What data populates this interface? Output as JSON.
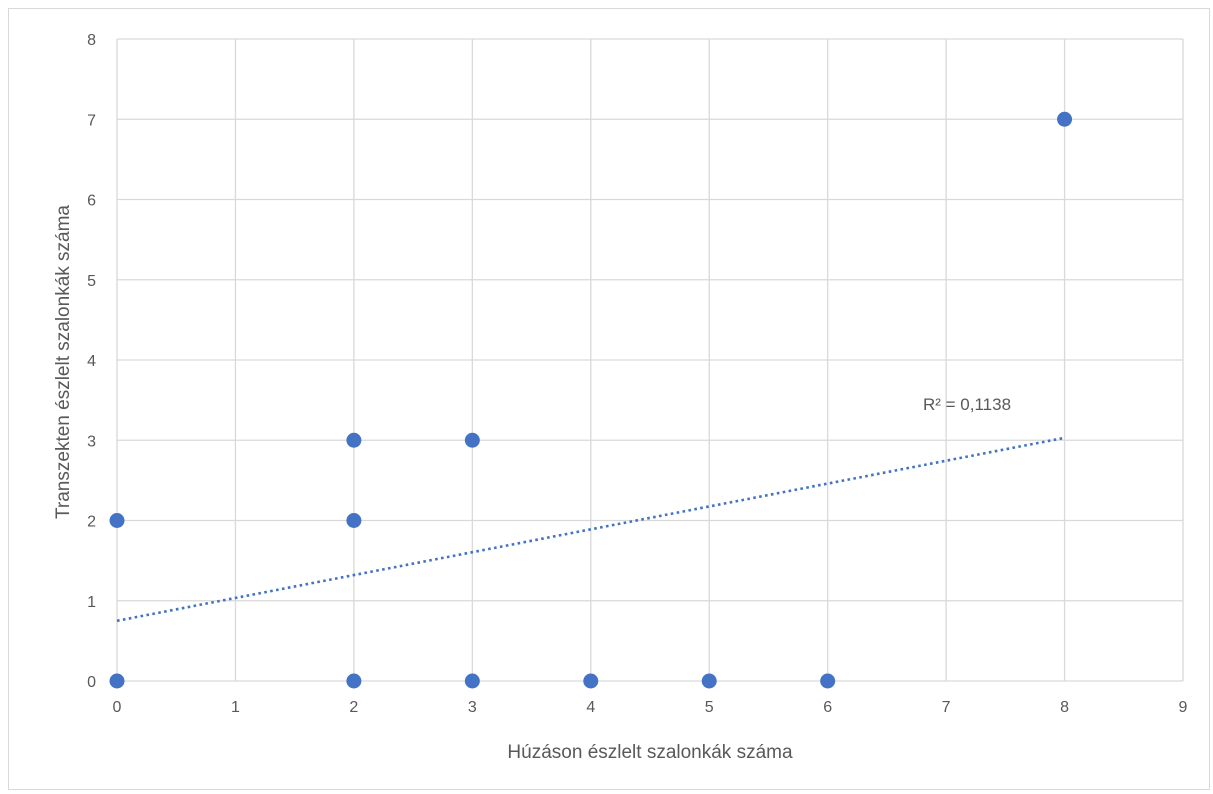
{
  "chart_data": {
    "type": "scatter",
    "title": "",
    "xlabel": "Húzáson észlelt szalonkák száma",
    "ylabel": "Transzekten észlelt szalonkák száma",
    "xlim": [
      0,
      9
    ],
    "ylim": [
      0,
      8
    ],
    "x_ticks": [
      0,
      1,
      2,
      3,
      4,
      5,
      6,
      7,
      8,
      9
    ],
    "y_ticks": [
      0,
      1,
      2,
      3,
      4,
      5,
      6,
      7,
      8
    ],
    "grid": true,
    "legend": "none",
    "series": [
      {
        "color": "#4472c4",
        "points": [
          {
            "x": 0,
            "y": 2
          },
          {
            "x": 0,
            "y": 0
          },
          {
            "x": 2,
            "y": 3
          },
          {
            "x": 2,
            "y": 2
          },
          {
            "x": 2,
            "y": 0
          },
          {
            "x": 3,
            "y": 3
          },
          {
            "x": 3,
            "y": 0
          },
          {
            "x": 4,
            "y": 0
          },
          {
            "x": 5,
            "y": 0
          },
          {
            "x": 6,
            "y": 0
          },
          {
            "x": 8,
            "y": 7
          }
        ]
      }
    ],
    "trendline": {
      "type": "linear",
      "style": "dotted",
      "color": "#4472c4",
      "x_range": [
        0,
        8
      ],
      "y_start": 0.75,
      "y_end": 3.03,
      "label": "R² = 0,1138"
    }
  }
}
